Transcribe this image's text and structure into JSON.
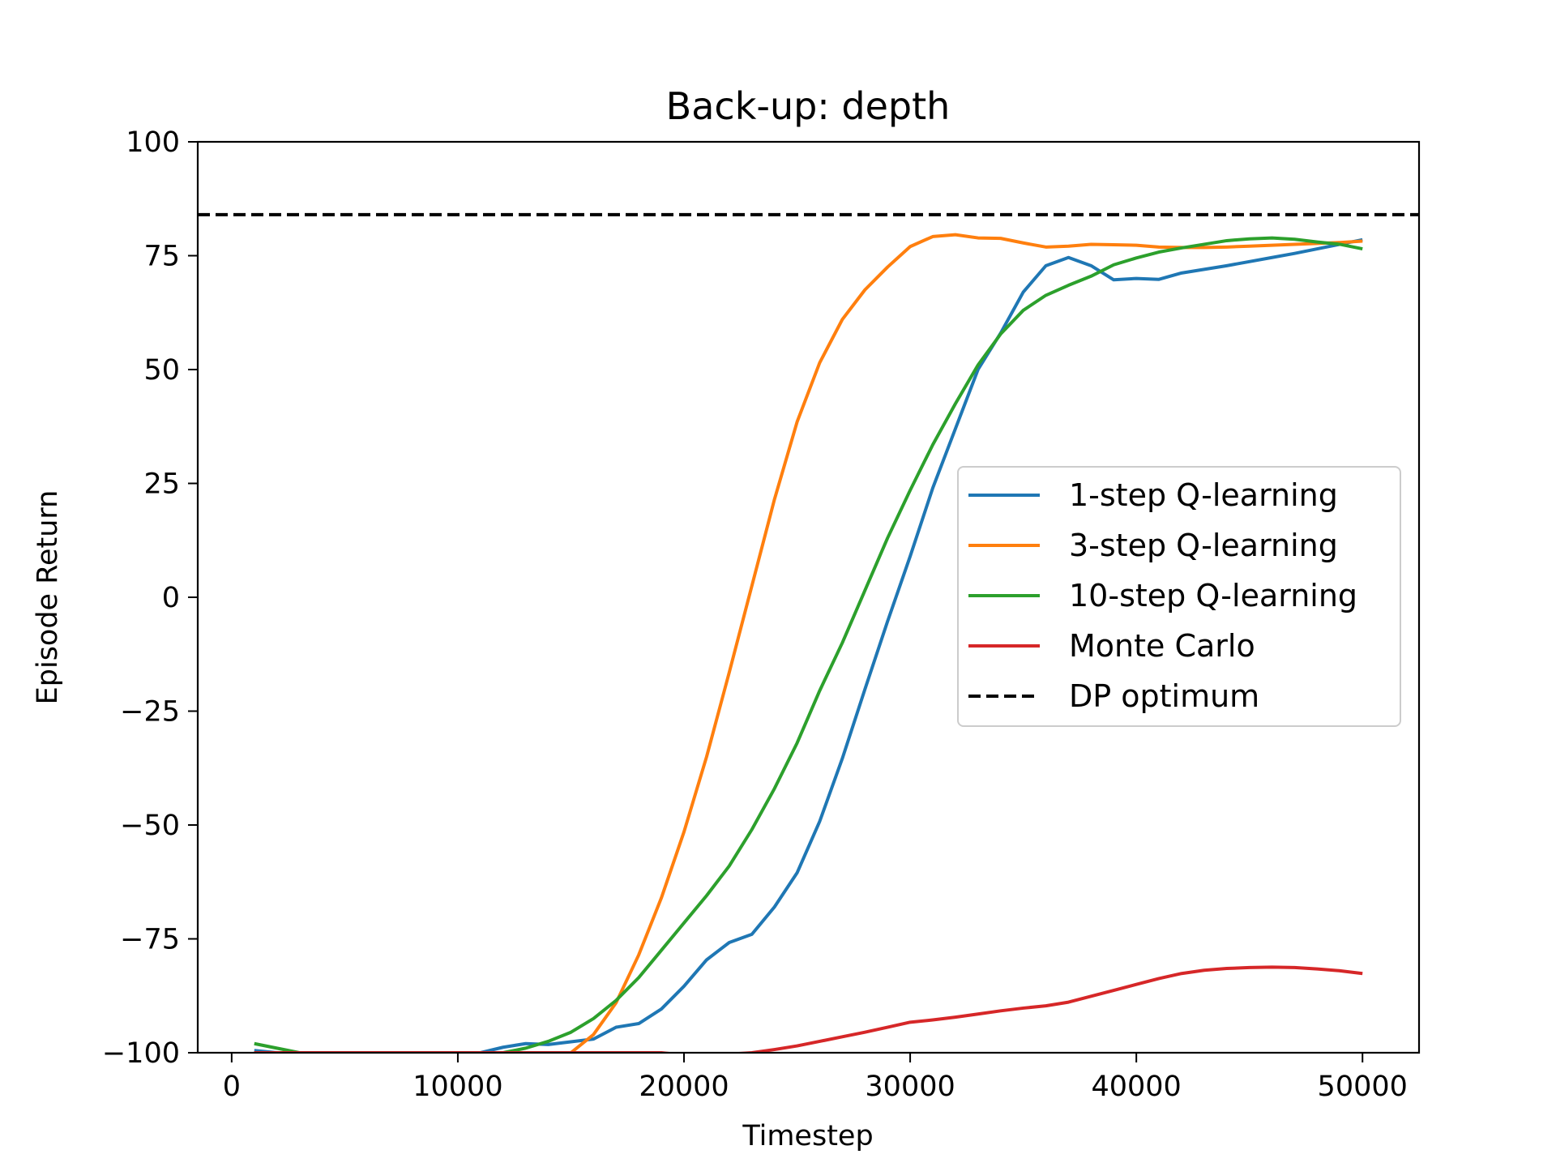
{
  "chart_data": {
    "type": "line",
    "title": "Back-up: depth",
    "xlabel": "Timestep",
    "ylabel": "Episode Return",
    "xlim": [
      -1500,
      52500
    ],
    "ylim": [
      -100,
      100
    ],
    "xticks": [
      0,
      10000,
      20000,
      30000,
      40000,
      50000
    ],
    "xtick_labels": [
      "0",
      "10000",
      "20000",
      "30000",
      "40000",
      "50000"
    ],
    "yticks": [
      -100,
      -75,
      -50,
      -25,
      0,
      25,
      50,
      75,
      100
    ],
    "ytick_labels": [
      "−100",
      "−75",
      "−50",
      "−25",
      "0",
      "25",
      "50",
      "75",
      "100"
    ],
    "grid": false,
    "legend_position": "center-right",
    "x": [
      1000,
      2000,
      3000,
      4000,
      5000,
      6000,
      7000,
      8000,
      9000,
      10000,
      11000,
      12000,
      13000,
      14000,
      15000,
      16000,
      17000,
      18000,
      19000,
      20000,
      21000,
      22000,
      23000,
      24000,
      25000,
      26000,
      27000,
      28000,
      29000,
      30000,
      31000,
      32000,
      33000,
      34000,
      35000,
      36000,
      37000,
      38000,
      39000,
      40000,
      41000,
      42000,
      43000,
      44000,
      45000,
      46000,
      47000,
      48000,
      49000,
      50000
    ],
    "series": [
      {
        "name": "1-step Q-learning",
        "color": "#1f77b4",
        "dash": "solid",
        "values": [
          -99.5,
          -100,
          -100,
          -100,
          -100,
          -100,
          -100,
          -100,
          -100,
          -100,
          -100,
          -98.8,
          -98.0,
          -98.2,
          -97.6,
          -97.0,
          -94.4,
          -93.6,
          -90.4,
          -85.4,
          -79.6,
          -75.8,
          -74.0,
          -68.0,
          -60.5,
          -49.2,
          -35.4,
          -20.2,
          -5.3,
          9.0,
          24.0,
          37.0,
          50.0,
          58.0,
          67.0,
          72.8,
          74.6,
          72.8,
          69.7,
          70.0,
          69.8,
          71.2,
          72.0,
          72.8,
          73.7,
          74.6,
          75.5,
          76.5,
          77.5,
          78.5
        ]
      },
      {
        "name": "3-step Q-learning",
        "color": "#ff7f0e",
        "dash": "solid",
        "values": [
          -100,
          -100,
          -100,
          -100,
          -100,
          -100,
          -100,
          -100,
          -100,
          -100,
          -100,
          -100,
          -100,
          -100,
          -100,
          -96.0,
          -89.0,
          -78.5,
          -66.0,
          -51.5,
          -35.0,
          -16.5,
          2.5,
          21.5,
          38.5,
          51.5,
          61.0,
          67.5,
          72.5,
          77.0,
          79.2,
          79.6,
          78.9,
          78.8,
          77.8,
          76.9,
          77.1,
          77.5,
          77.4,
          77.3,
          76.9,
          76.8,
          76.8,
          76.9,
          77.1,
          77.3,
          77.5,
          77.7,
          77.9,
          78.2
        ]
      },
      {
        "name": "10-step Q-learning",
        "color": "#2ca02c",
        "dash": "solid",
        "values": [
          -98.0,
          -99.0,
          -100,
          -100,
          -100,
          -100,
          -100,
          -100,
          -100,
          -100,
          -100,
          -100,
          -99.0,
          -97.5,
          -95.5,
          -92.5,
          -88.5,
          -83.5,
          -77.5,
          -71.5,
          -65.5,
          -59.0,
          -51.0,
          -42.0,
          -32.0,
          -20.5,
          -10.0,
          1.5,
          13.0,
          23.5,
          33.5,
          42.5,
          51.0,
          57.8,
          63.0,
          66.3,
          68.5,
          70.5,
          73.0,
          74.5,
          75.8,
          76.7,
          77.5,
          78.3,
          78.7,
          78.9,
          78.6,
          78.0,
          77.5,
          76.5
        ]
      },
      {
        "name": "Monte Carlo",
        "color": "#d62728",
        "dash": "solid",
        "values": [
          -100,
          -100,
          -100,
          -100,
          -100,
          -100,
          -100,
          -100,
          -100,
          -100,
          -100,
          -100,
          -100,
          -100,
          -100,
          -100,
          -100,
          -100,
          -100,
          -100.5,
          -100.5,
          -100.3,
          -100.0,
          -99.3,
          -98.5,
          -97.5,
          -96.5,
          -95.5,
          -94.4,
          -93.3,
          -92.8,
          -92.2,
          -91.5,
          -90.8,
          -90.2,
          -89.7,
          -88.9,
          -87.6,
          -86.3,
          -85.0,
          -83.7,
          -82.6,
          -81.9,
          -81.5,
          -81.3,
          -81.2,
          -81.3,
          -81.6,
          -82.0,
          -82.6
        ]
      },
      {
        "name": "DP optimum",
        "color": "#000000",
        "dash": "dashed",
        "constant": 84
      }
    ]
  }
}
